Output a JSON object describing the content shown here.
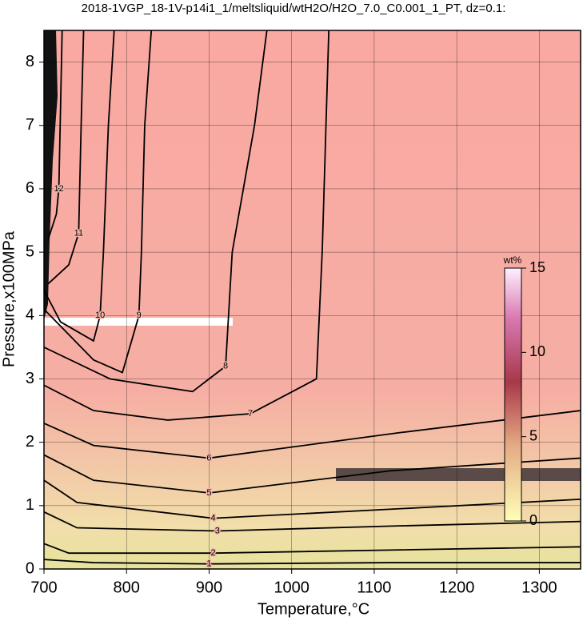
{
  "chart_data": {
    "type": "contour",
    "title": "2018-1VGP_18-1V-p14i1_1/meltsliquid/wtH2O/H2O_7.0_C0.001_1_PT, dz=0.1:",
    "x_label": "Temperature,°C",
    "y_label": "Pressure,x100MPa",
    "xlim": [
      700,
      1350
    ],
    "xticks": [
      700,
      800,
      900,
      1000,
      1100,
      1200,
      1300
    ],
    "ylim": [
      0,
      8.5
    ],
    "yticks": [
      0,
      1,
      2,
      3,
      4,
      5,
      6,
      7,
      8
    ],
    "grid": true,
    "line_color": "#000000",
    "colorbar": {
      "label": "wt%",
      "lim": [
        0,
        15
      ],
      "ticks": [
        0,
        5,
        10,
        15
      ]
    },
    "series": [
      {
        "name": "1",
        "x": [
          700,
          760,
          900,
          1120,
          1350
        ],
        "y": [
          0.15,
          0.1,
          0.08,
          0.1,
          0.1
        ]
      },
      {
        "name": "2",
        "x": [
          700,
          730,
          905,
          1125,
          1350
        ],
        "y": [
          0.4,
          0.25,
          0.25,
          0.3,
          0.35
        ]
      },
      {
        "name": "3",
        "x": [
          700,
          740,
          910,
          1130,
          1350
        ],
        "y": [
          0.9,
          0.65,
          0.6,
          0.68,
          0.75
        ]
      },
      {
        "name": "4",
        "x": [
          700,
          740,
          905,
          1130,
          1350
        ],
        "y": [
          1.4,
          1.05,
          0.8,
          0.95,
          1.1
        ]
      },
      {
        "name": "5",
        "x": [
          700,
          760,
          900,
          1120,
          1350
        ],
        "y": [
          1.8,
          1.4,
          1.2,
          1.55,
          1.75
        ]
      },
      {
        "name": "6",
        "x": [
          700,
          760,
          900,
          1130,
          1350
        ],
        "y": [
          2.3,
          1.95,
          1.75,
          2.15,
          2.5
        ]
      },
      {
        "name": "7",
        "x": [
          700,
          760,
          850,
          950,
          1030,
          1037,
          1045
        ],
        "y": [
          2.9,
          2.5,
          2.35,
          2.45,
          3.0,
          5.0,
          8.5
        ]
      },
      {
        "name": "8",
        "x": [
          700,
          780,
          880,
          920,
          928,
          955,
          970
        ],
        "y": [
          3.5,
          3.0,
          2.8,
          3.2,
          5.0,
          7.0,
          8.5
        ]
      },
      {
        "name": "9",
        "x": [
          700,
          760,
          795,
          815,
          818,
          822,
          830
        ],
        "y": [
          4.1,
          3.3,
          3.1,
          4.0,
          5.0,
          7.0,
          8.5
        ]
      },
      {
        "name": "10",
        "x": [
          700,
          720,
          760,
          768,
          772,
          778,
          785
        ],
        "y": [
          4.4,
          3.9,
          3.6,
          4.0,
          5.0,
          7.0,
          8.5
        ]
      },
      {
        "name": "11",
        "x": [
          705,
          730,
          742,
          745,
          748
        ],
        "y": [
          4.5,
          4.8,
          5.3,
          7.0,
          8.5
        ]
      },
      {
        "name": "12",
        "x": [
          705,
          715,
          718,
          722
        ],
        "y": [
          5.2,
          5.6,
          6.0,
          8.5
        ]
      }
    ]
  }
}
